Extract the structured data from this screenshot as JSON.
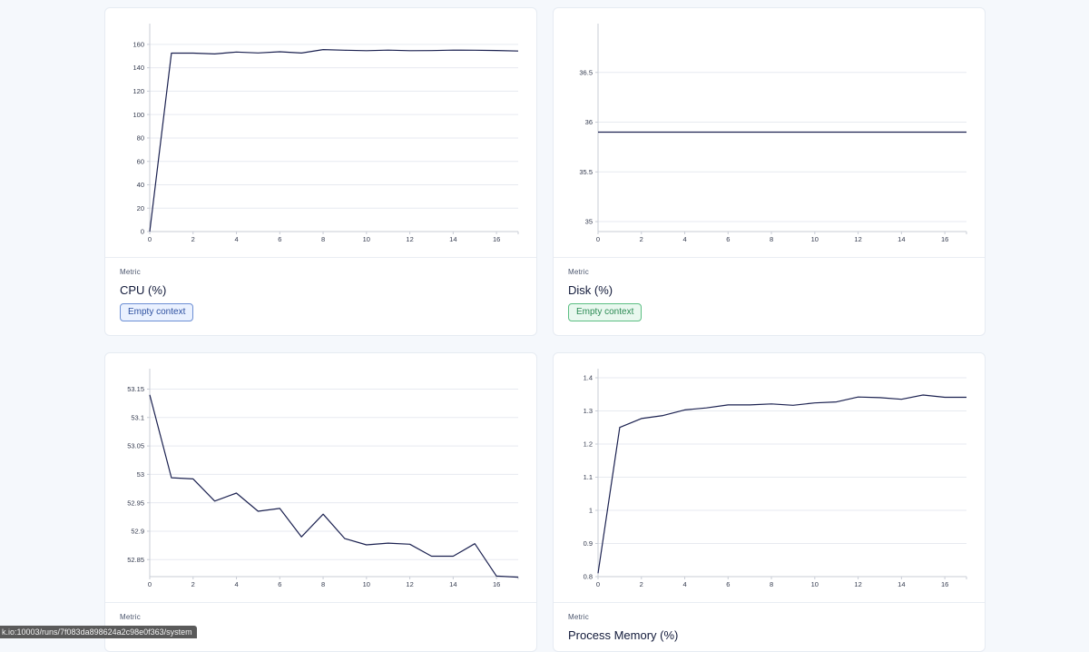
{
  "cards": [
    {
      "metric_label": "Metric",
      "title": "CPU (%)",
      "badge": "Empty context",
      "chart_data": {
        "type": "line",
        "x": [
          0,
          1,
          2,
          3,
          4,
          5,
          6,
          7,
          8,
          9,
          10,
          11,
          12,
          13,
          14,
          15,
          16,
          17
        ],
        "series": [
          {
            "values": [
              0,
              152.5,
              152.5,
              151.8,
              153.5,
              152.7,
              153.7,
              152.6,
              155.6,
              155.0,
              154.6,
              155.1,
              154.6,
              154.7,
              155.1,
              155.0,
              154.8,
              154.3
            ]
          }
        ],
        "xlim": [
          0,
          17
        ],
        "ylim": [
          0,
          170
        ],
        "xticks": [
          "0",
          "2",
          "4",
          "6",
          "8",
          "10",
          "12",
          "14",
          "16"
        ],
        "yticks": [
          "0",
          "20",
          "40",
          "60",
          "80",
          "100",
          "120",
          "140",
          "160"
        ],
        "xlabel": "",
        "ylabel": "",
        "grid": true
      }
    },
    {
      "metric_label": "Metric",
      "title": "Disk (%)",
      "badge": "Empty context",
      "chart_data": {
        "type": "line",
        "x": [
          0,
          17
        ],
        "series": [
          {
            "values": [
              35.9,
              35.9
            ]
          }
        ],
        "xlim": [
          0,
          17
        ],
        "ylim": [
          34.9,
          36.9
        ],
        "xticks": [
          "0",
          "2",
          "4",
          "6",
          "8",
          "10",
          "12",
          "14",
          "16"
        ],
        "yticks": [
          "35",
          "35.5",
          "36",
          "36.5"
        ],
        "xlabel": "",
        "ylabel": "",
        "grid": true
      }
    },
    {
      "metric_label": "Metric",
      "title": "",
      "chart_data": {
        "type": "line",
        "x": [
          0,
          1,
          2,
          3,
          4,
          5,
          6,
          7,
          8,
          9,
          10,
          11,
          12,
          13,
          14,
          15,
          16,
          17
        ],
        "series": [
          {
            "values": [
              53.14,
              52.994,
              52.992,
              52.953,
              52.967,
              52.935,
              52.94,
              52.89,
              52.93,
              52.887,
              52.876,
              52.879,
              52.877,
              52.856,
              52.856,
              52.878,
              52.821,
              52.819
            ]
          }
        ],
        "xlim": [
          0,
          17
        ],
        "ylim": [
          52.82,
          53.17
        ],
        "xticks": [
          "0",
          "2",
          "4",
          "6",
          "8",
          "10",
          "12",
          "14",
          "16"
        ],
        "yticks": [
          "52.85",
          "52.9",
          "52.95",
          "53",
          "53.05",
          "53.1",
          "53.15"
        ],
        "xlabel": "",
        "ylabel": "",
        "grid": true
      }
    },
    {
      "metric_label": "Metric",
      "title": "Process Memory (%)",
      "chart_data": {
        "type": "line",
        "x": [
          0,
          1,
          2,
          3,
          4,
          5,
          6,
          7,
          8,
          9,
          10,
          11,
          12,
          13,
          14,
          15,
          16,
          17
        ],
        "series": [
          {
            "values": [
              0.81,
              1.25,
              1.277,
              1.286,
              1.303,
              1.309,
              1.318,
              1.318,
              1.321,
              1.317,
              1.324,
              1.327,
              1.342,
              1.34,
              1.335,
              1.348,
              1.341,
              1.341
            ]
          }
        ],
        "xlim": [
          0,
          17
        ],
        "ylim": [
          0.8,
          1.4
        ],
        "xticks": [
          "0",
          "2",
          "4",
          "6",
          "8",
          "10",
          "12",
          "14",
          "16"
        ],
        "yticks": [
          "0.8",
          "0.9",
          "1",
          "1.1",
          "1.2",
          "1.3",
          "1.4"
        ],
        "xlabel": "",
        "ylabel": "",
        "grid": true
      }
    }
  ],
  "colors": {
    "line": "#1b2150",
    "grid": "#e7eaf0",
    "axis": "#c9cdd6"
  },
  "status_url": "k.io:10003/runs/7f083da898624a2c98e0f363/system"
}
